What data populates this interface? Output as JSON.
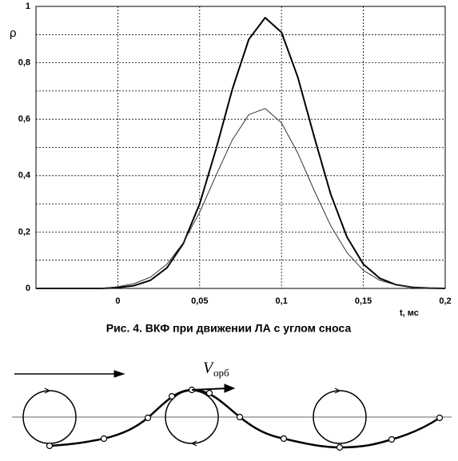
{
  "chart_data": {
    "type": "line",
    "y_label": "ρ",
    "x_label": "t, мс",
    "x": [
      -0.05,
      -0.04,
      -0.03,
      -0.02,
      -0.01,
      0,
      0.01,
      0.02,
      0.03,
      0.04,
      0.05,
      0.06,
      0.07,
      0.08,
      0.09,
      0.1,
      0.11,
      0.12,
      0.13,
      0.14,
      0.15,
      0.16,
      0.17,
      0.18,
      0.19,
      0.2
    ],
    "series": [
      {
        "color": "#000000",
        "values": [
          0,
          0,
          0,
          0,
          0,
          0.003,
          0.01,
          0.029,
          0.073,
          0.159,
          0.3,
          0.494,
          0.707,
          0.883,
          0.96,
          0.908,
          0.748,
          0.537,
          0.335,
          0.182,
          0.086,
          0.036,
          0.013,
          0.004,
          0.001,
          0
        ]
      },
      {
        "color": "#333333",
        "values": [
          0,
          0,
          0,
          0,
          0,
          0.006,
          0.017,
          0.04,
          0.086,
          0.162,
          0.27,
          0.401,
          0.527,
          0.616,
          0.638,
          0.587,
          0.479,
          0.347,
          0.223,
          0.127,
          0.064,
          0.029,
          0.012,
          0.004,
          0.001,
          0
        ]
      }
    ],
    "xlim": [
      -0.05,
      0.2
    ],
    "xticks": [
      0,
      {
        "value": 0.05,
        "label": "0,05"
      },
      {
        "value": 0.1,
        "label": "0,1"
      },
      {
        "value": 0.15,
        "label": "0,15"
      },
      {
        "value": 0.2,
        "label": "0,2"
      }
    ],
    "ylim": [
      0,
      1
    ],
    "yticks": [
      0,
      {
        "value": 0.2,
        "label": "0,2"
      },
      {
        "value": 0.4,
        "label": "0,4"
      },
      {
        "value": 0.6,
        "label": "0,6"
      },
      {
        "value": 0.8,
        "label": "0,8"
      },
      1
    ],
    "y_minor_grid": [
      0.1,
      0.3,
      0.5,
      0.7,
      0.9
    ],
    "grid": true
  },
  "caption": "Рис. 4. ВКФ при движении ЛА с углом сноса",
  "diagram": {
    "label": "V",
    "label_sub": "орб"
  }
}
